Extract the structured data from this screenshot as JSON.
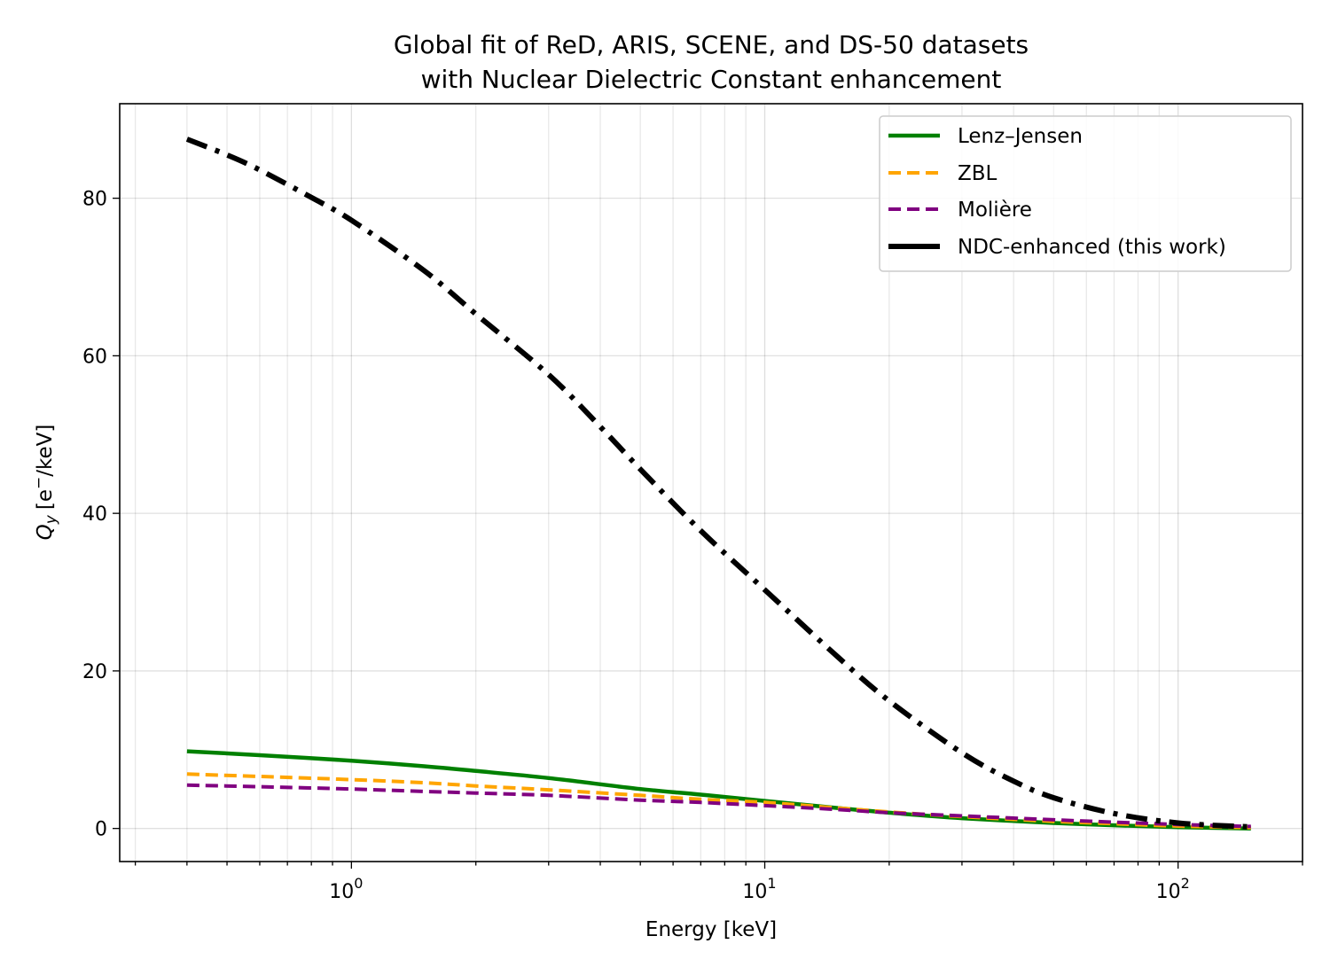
{
  "chart_data": {
    "type": "line",
    "title": [
      "Global fit of ReD, ARIS, SCENE, and DS-50 datasets",
      "with Nuclear Dielectric Constant enhancement"
    ],
    "xlabel": "Energy [keV]",
    "ylabel_main": "Q",
    "ylabel_sub": "y",
    "ylabel_unit": "[e",
    "ylabel_sup": "−",
    "ylabel_tail": "/keV]",
    "xscale": "log",
    "xlim": [
      0.275,
      200
    ],
    "ylim": [
      -4.2,
      92
    ],
    "y_ticks": [
      0,
      20,
      40,
      60,
      80
    ],
    "x_major_ticks": [
      {
        "value": 1,
        "base": "10",
        "exp": "0"
      },
      {
        "value": 10,
        "base": "10",
        "exp": "1"
      },
      {
        "value": 100,
        "base": "10",
        "exp": "2"
      }
    ],
    "grid": true,
    "legend_position": "upper right",
    "series": [
      {
        "name": "Lenz–Jensen",
        "color": "#008000",
        "style": "solid",
        "x": [
          0.4,
          0.6,
          1,
          1.5,
          2,
          3,
          5,
          7,
          10,
          15,
          20,
          30,
          50,
          70,
          100,
          150
        ],
        "y": [
          9.8,
          9.3,
          8.6,
          7.9,
          7.3,
          6.4,
          5.0,
          4.3,
          3.5,
          2.6,
          2.0,
          1.3,
          0.7,
          0.4,
          0.15,
          0.0
        ]
      },
      {
        "name": "ZBL",
        "color": "#FFA500",
        "style": "dashed",
        "x": [
          0.4,
          0.6,
          1,
          1.5,
          2,
          3,
          5,
          7,
          10,
          15,
          20,
          30,
          50,
          70,
          100,
          150
        ],
        "y": [
          6.9,
          6.6,
          6.2,
          5.8,
          5.4,
          4.9,
          4.2,
          3.7,
          3.3,
          2.6,
          2.1,
          1.5,
          0.9,
          0.6,
          0.3,
          0.1
        ]
      },
      {
        "name": "Molière",
        "color": "#800080",
        "style": "dashed",
        "x": [
          0.4,
          0.6,
          1,
          1.5,
          2,
          3,
          5,
          7,
          10,
          15,
          20,
          30,
          50,
          70,
          100,
          150
        ],
        "y": [
          5.5,
          5.3,
          5.0,
          4.7,
          4.5,
          4.2,
          3.6,
          3.3,
          2.9,
          2.4,
          2.0,
          1.6,
          1.1,
          0.8,
          0.5,
          0.25
        ]
      },
      {
        "name": "NDC-enhanced (this work)",
        "color": "#000000",
        "style": "dashdot",
        "x": [
          0.4,
          0.5,
          0.6,
          0.8,
          1,
          1.5,
          2,
          3,
          4,
          5,
          7,
          10,
          15,
          20,
          30,
          40,
          50,
          70,
          100,
          150
        ],
        "y": [
          87.5,
          85.5,
          83.6,
          80.1,
          77.2,
          70.8,
          65.3,
          57.6,
          51.0,
          45.6,
          37.8,
          30.3,
          21.8,
          16.2,
          9.6,
          6.0,
          3.9,
          1.9,
          0.7,
          0.2
        ]
      }
    ]
  }
}
